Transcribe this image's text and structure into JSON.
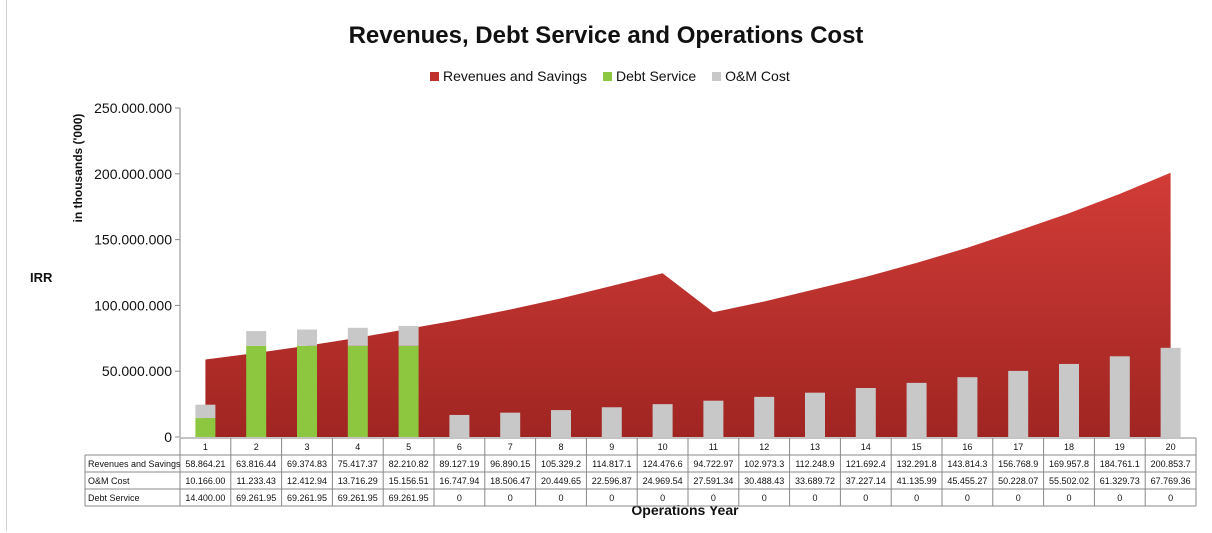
{
  "title": "Revenues, Debt Service and Operations Cost",
  "side_label": "IRR",
  "legend": [
    {
      "label": "Revenues and Savings",
      "color": "#c0302c"
    },
    {
      "label": "Debt Service",
      "color": "#8dc63f"
    },
    {
      "label": "O&M Cost",
      "color": "#c8c8c8"
    }
  ],
  "chart_data": {
    "type": "bar",
    "title": "Revenues, Debt Service and Operations Cost",
    "xlabel": "Operations Year",
    "ylabel": "in thousands ('000)",
    "ylim": [
      0,
      250000000
    ],
    "y_ticks": [
      "0",
      "50.000.000",
      "100.000.000",
      "150.000.000",
      "200.000.000",
      "250.000.000"
    ],
    "y_tick_values": [
      0,
      50000000,
      100000000,
      150000000,
      200000000,
      250000000
    ],
    "grid": false,
    "legend_position": "top",
    "categories": [
      "1",
      "2",
      "3",
      "4",
      "5",
      "6",
      "7",
      "8",
      "9",
      "10",
      "11",
      "12",
      "13",
      "14",
      "15",
      "16",
      "17",
      "18",
      "19",
      "20"
    ],
    "series": [
      {
        "name": "Revenues and Savings",
        "type": "area",
        "color": "#c0302c",
        "values": [
          58864210,
          63816440,
          69374830,
          75417370,
          82210820,
          89127190,
          96890150,
          105329200,
          114817100,
          124476600,
          94722970,
          102973300,
          112248900,
          121692400,
          132291800,
          143814300,
          156768900,
          169957800,
          184761100,
          200853700
        ]
      },
      {
        "name": "Debt Service",
        "type": "bar",
        "color": "#8dc63f",
        "values": [
          14400000,
          69261950,
          69261950,
          69261950,
          69261950,
          0,
          0,
          0,
          0,
          0,
          0,
          0,
          0,
          0,
          0,
          0,
          0,
          0,
          0,
          0
        ]
      },
      {
        "name": "O&M Cost",
        "type": "bar",
        "color": "#c8c8c8",
        "values": [
          10166000,
          11233430,
          12412940,
          13716290,
          15156510,
          16747940,
          18506470,
          20449650,
          22596870,
          24969540,
          27591340,
          30488430,
          33689720,
          37227140,
          41135990,
          45455270,
          50228070,
          55502020,
          61329730,
          67769360
        ]
      }
    ],
    "table": {
      "rows": [
        {
          "label": "Revenues and Savings",
          "cells": [
            "58.864.21",
            "63.816.44",
            "69.374.83",
            "75.417.37",
            "82.210.82",
            "89.127.19",
            "96.890.15",
            "105.329.2",
            "114.817.1",
            "124.476.6",
            "94.722.97",
            "102.973.3",
            "112.248.9",
            "121.692.4",
            "132.291.8",
            "143.814.3",
            "156.768.9",
            "169.957.8",
            "184.761.1",
            "200.853.7"
          ]
        },
        {
          "label": "O&M Cost",
          "cells": [
            "10.166.00",
            "11.233.43",
            "12.412.94",
            "13.716.29",
            "15.156.51",
            "16.747.94",
            "18.506.47",
            "20.449.65",
            "22.596.87",
            "24.969.54",
            "27.591.34",
            "30.488.43",
            "33.689.72",
            "37.227.14",
            "41.135.99",
            "45.455.27",
            "50.228.07",
            "55.502.02",
            "61.329.73",
            "67.769.36"
          ]
        },
        {
          "label": "Debt Service",
          "cells": [
            "14.400.00",
            "69.261.95",
            "69.261.95",
            "69.261.95",
            "69.261.95",
            "0",
            "0",
            "0",
            "0",
            "0",
            "0",
            "0",
            "0",
            "0",
            "0",
            "0",
            "0",
            "0",
            "0",
            "0"
          ]
        }
      ]
    }
  }
}
